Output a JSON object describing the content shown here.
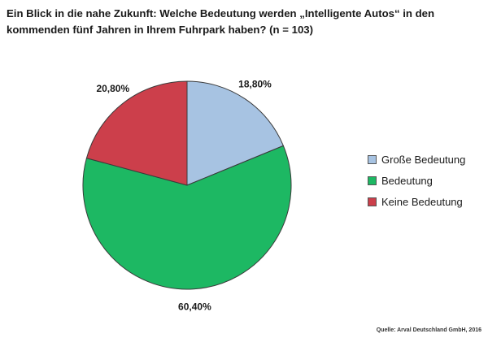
{
  "chart_data": {
    "type": "pie",
    "title": "Ein Blick in die nahe Zukunft: Welche Bedeutung werden „Intelligente Autos“ in den\nkommenden fünf Jahren in Ihrem Fuhrpark haben? (n = 103)",
    "categories": [
      "Große Bedeutung",
      "Bedeutung",
      "Keine Bedeutung"
    ],
    "values": [
      18.8,
      60.4,
      20.8
    ],
    "value_labels": [
      "18,80%",
      "60,40%",
      "20,80%"
    ],
    "colors": [
      "#a7c3e2",
      "#1db863",
      "#cc3f4b"
    ],
    "start_angle_deg": 0,
    "direction": "clockwise",
    "legend_position": "right",
    "source": "Quelle: Arval Deutschland GmbH, 2016"
  }
}
